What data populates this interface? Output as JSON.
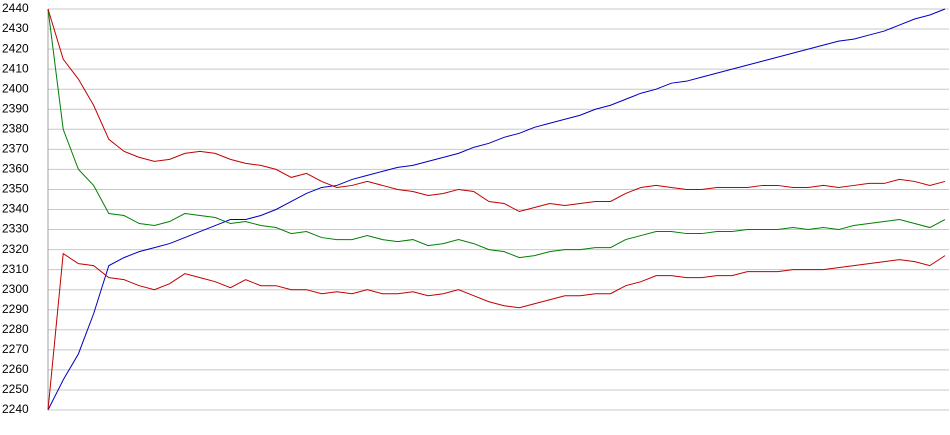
{
  "chart_data": {
    "type": "line",
    "categories": [
      null,
      null,
      null,
      null,
      null,
      null,
      null,
      null,
      null,
      null,
      null,
      null,
      null,
      null,
      null,
      null,
      null,
      null,
      null,
      null,
      null,
      null,
      null,
      null,
      null,
      null,
      null,
      null,
      null,
      null,
      null,
      null,
      null,
      null,
      null,
      null,
      null,
      null,
      null,
      null,
      null,
      null,
      null,
      null,
      null,
      null,
      null,
      null,
      null,
      null,
      null,
      null,
      null,
      null,
      null,
      null,
      null,
      null,
      null,
      null
    ],
    "series": [
      {
        "color": "#0000c0",
        "values": [
          2240,
          2255,
          2268,
          2288,
          2312,
          2316,
          2319,
          2321,
          2323,
          2326,
          2329,
          2332,
          2335,
          2335,
          2337,
          2340,
          2344,
          2348,
          2351,
          2352,
          2355,
          2357,
          2359,
          2361,
          2362,
          2364,
          2366,
          2368,
          2371,
          2373,
          2376,
          2378,
          2381,
          2383,
          2385,
          2387,
          2390,
          2392,
          2395,
          2398,
          2400,
          2403,
          2404,
          2406,
          2408,
          2410,
          2412,
          2414,
          2416,
          2418,
          2420,
          2422,
          2424,
          2425,
          2427,
          2429,
          2432,
          2435,
          2437,
          2440
        ]
      },
      {
        "color": "#008000",
        "values": [
          2440,
          2380,
          2360,
          2352,
          2338,
          2337,
          2333,
          2332,
          2334,
          2338,
          2337,
          2336,
          2333,
          2334,
          2332,
          2331,
          2328,
          2329,
          2326,
          2325,
          2325,
          2327,
          2325,
          2324,
          2325,
          2322,
          2323,
          2325,
          2323,
          2320,
          2319,
          2316,
          2317,
          2319,
          2320,
          2320,
          2321,
          2321,
          2325,
          2327,
          2329,
          2329,
          2328,
          2328,
          2329,
          2329,
          2330,
          2330,
          2330,
          2331,
          2330,
          2331,
          2330,
          2332,
          2333,
          2334,
          2335,
          2333,
          2331,
          2335
        ]
      },
      {
        "color": "#c00000",
        "values": [
          2440,
          2415,
          2405,
          2392,
          2375,
          2369,
          2366,
          2364,
          2365,
          2368,
          2369,
          2368,
          2365,
          2363,
          2362,
          2360,
          2356,
          2358,
          2354,
          2351,
          2352,
          2354,
          2352,
          2350,
          2349,
          2347,
          2348,
          2350,
          2349,
          2344,
          2343,
          2339,
          2341,
          2343,
          2342,
          2343,
          2344,
          2344,
          2348,
          2351,
          2352,
          2351,
          2350,
          2350,
          2351,
          2351,
          2351,
          2352,
          2352,
          2351,
          2351,
          2352,
          2351,
          2352,
          2353,
          2353,
          2355,
          2354,
          2352,
          2354
        ]
      },
      {
        "color": "#c00000",
        "values": [
          2240,
          2318,
          2313,
          2312,
          2306,
          2305,
          2302,
          2300,
          2303,
          2308,
          2306,
          2304,
          2301,
          2305,
          2302,
          2302,
          2300,
          2300,
          2298,
          2299,
          2298,
          2300,
          2298,
          2298,
          2299,
          2297,
          2298,
          2300,
          2297,
          2294,
          2292,
          2291,
          2293,
          2295,
          2297,
          2297,
          2298,
          2298,
          2302,
          2304,
          2307,
          2307,
          2306,
          2306,
          2307,
          2307,
          2309,
          2309,
          2309,
          2310,
          2310,
          2310,
          2311,
          2312,
          2313,
          2314,
          2315,
          2314,
          2312,
          2317
        ]
      }
    ],
    "ylim": [
      2240,
      2440
    ],
    "yticks": [
      2240,
      2250,
      2260,
      2270,
      2280,
      2290,
      2300,
      2310,
      2320,
      2330,
      2340,
      2350,
      2360,
      2370,
      2380,
      2390,
      2400,
      2410,
      2420,
      2430,
      2440
    ],
    "grid": true
  }
}
